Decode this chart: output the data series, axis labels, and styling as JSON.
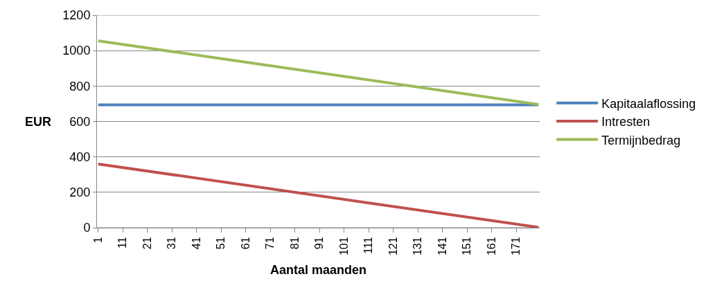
{
  "chart_data": {
    "type": "line",
    "xlabel": "Aantal maanden",
    "ylabel": "EUR",
    "xlim": [
      0.5,
      180.5
    ],
    "xticks": [
      1,
      11,
      21,
      31,
      41,
      51,
      61,
      71,
      81,
      91,
      101,
      111,
      121,
      131,
      141,
      151,
      161,
      171
    ],
    "ylim": [
      0,
      1200
    ],
    "yticks": [
      0,
      200,
      400,
      600,
      800,
      1000,
      1200
    ],
    "grid": "y",
    "legend": "right",
    "marker": "none",
    "line_style": "solid",
    "x": [
      1,
      180
    ],
    "series": [
      {
        "name": "Kapitaalaflossing",
        "color": "#4f81bd",
        "values": [
          694,
          694
        ]
      },
      {
        "name": "Intresten",
        "color": "#c0504d",
        "values": [
          360,
          2
        ]
      },
      {
        "name": "Termijnbedrag",
        "color": "#9bbb59",
        "values": [
          1055,
          696
        ]
      }
    ]
  }
}
